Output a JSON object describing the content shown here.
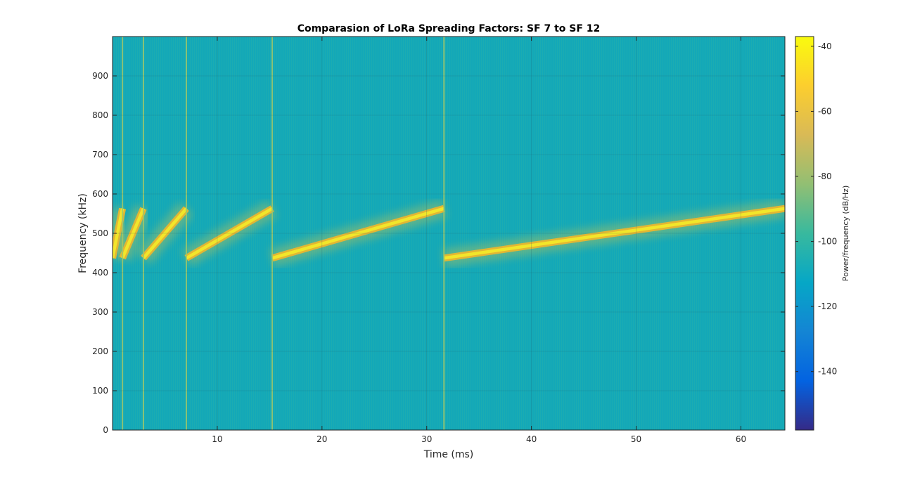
{
  "chart_data": {
    "type": "heatmap",
    "title": "Comparasion of LoRa Spreading Factors: SF 7 to SF 12",
    "xlabel": "Time (ms)",
    "ylabel": "Frequency (kHz)",
    "xlim": [
      0,
      64.2
    ],
    "ylim": [
      0,
      1000
    ],
    "xticks": [
      10,
      20,
      30,
      40,
      50,
      60
    ],
    "yticks": [
      0,
      100,
      200,
      300,
      400,
      500,
      600,
      700,
      800,
      900
    ],
    "grid": true,
    "background_color": "#13a8b8",
    "chirp_color": "#f2e62a",
    "chirps": [
      {
        "t_start": 0.0,
        "t_end": 0.95,
        "f_start": 437,
        "f_end": 563
      },
      {
        "t_start": 0.95,
        "t_end": 2.95,
        "f_start": 437,
        "f_end": 563
      },
      {
        "t_start": 2.95,
        "t_end": 7.05,
        "f_start": 437,
        "f_end": 563
      },
      {
        "t_start": 7.05,
        "t_end": 15.25,
        "f_start": 437,
        "f_end": 563
      },
      {
        "t_start": 15.25,
        "t_end": 31.65,
        "f_start": 437,
        "f_end": 563
      },
      {
        "t_start": 31.65,
        "t_end": 64.2,
        "f_start": 437,
        "f_end": 563
      }
    ],
    "colorbar": {
      "label": "Power/frequency (dB/Hz)",
      "range": [
        -158,
        -37
      ],
      "ticks": [
        -40,
        -60,
        -80,
        -100,
        -120,
        -140
      ],
      "colormap": [
        "#352a87",
        "#0363e1",
        "#1485d4",
        "#06a7c6",
        "#38b99e",
        "#92bf73",
        "#d9ba56",
        "#fcce2e",
        "#f9fb0e"
      ]
    }
  }
}
